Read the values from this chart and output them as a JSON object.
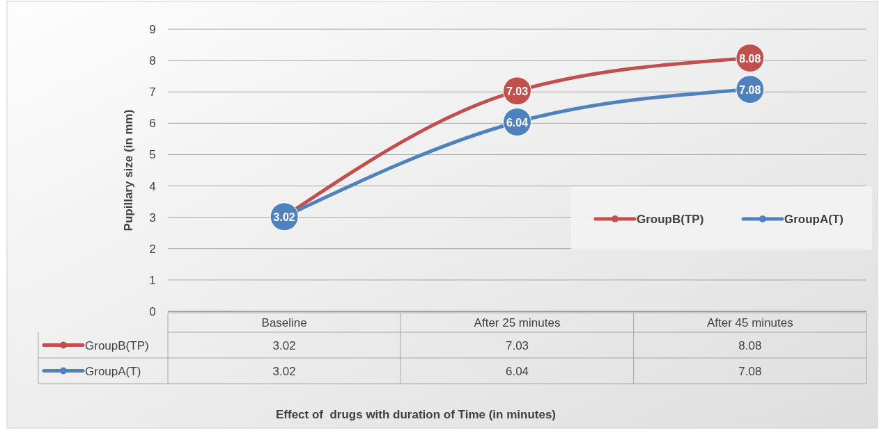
{
  "chart_data": {
    "type": "line",
    "annotations": [
      "Effect of  drugs with duration of Time (in minutes)"
    ],
    "ylabel": "Pupillary size (in mm)",
    "categories": [
      "Baseline",
      "After 25 minutes",
      "After 45 minutes"
    ],
    "series": [
      {
        "name": "GroupB(TP)",
        "color": "#c0504d",
        "values": [
          3.02,
          7.03,
          8.08
        ],
        "value_labels": [
          "3.02",
          "7.03",
          "8.08"
        ]
      },
      {
        "name": "GroupA(T)",
        "color": "#4f81bd",
        "values": [
          3.02,
          6.04,
          7.08
        ],
        "value_labels": [
          "3.02",
          "6.04",
          "7.08"
        ]
      }
    ],
    "ylim": [
      0,
      9
    ],
    "yticks": [
      0,
      1,
      2,
      3,
      4,
      5,
      6,
      7,
      8,
      9
    ],
    "grid": "y",
    "legend": "right",
    "marker": "circle"
  }
}
